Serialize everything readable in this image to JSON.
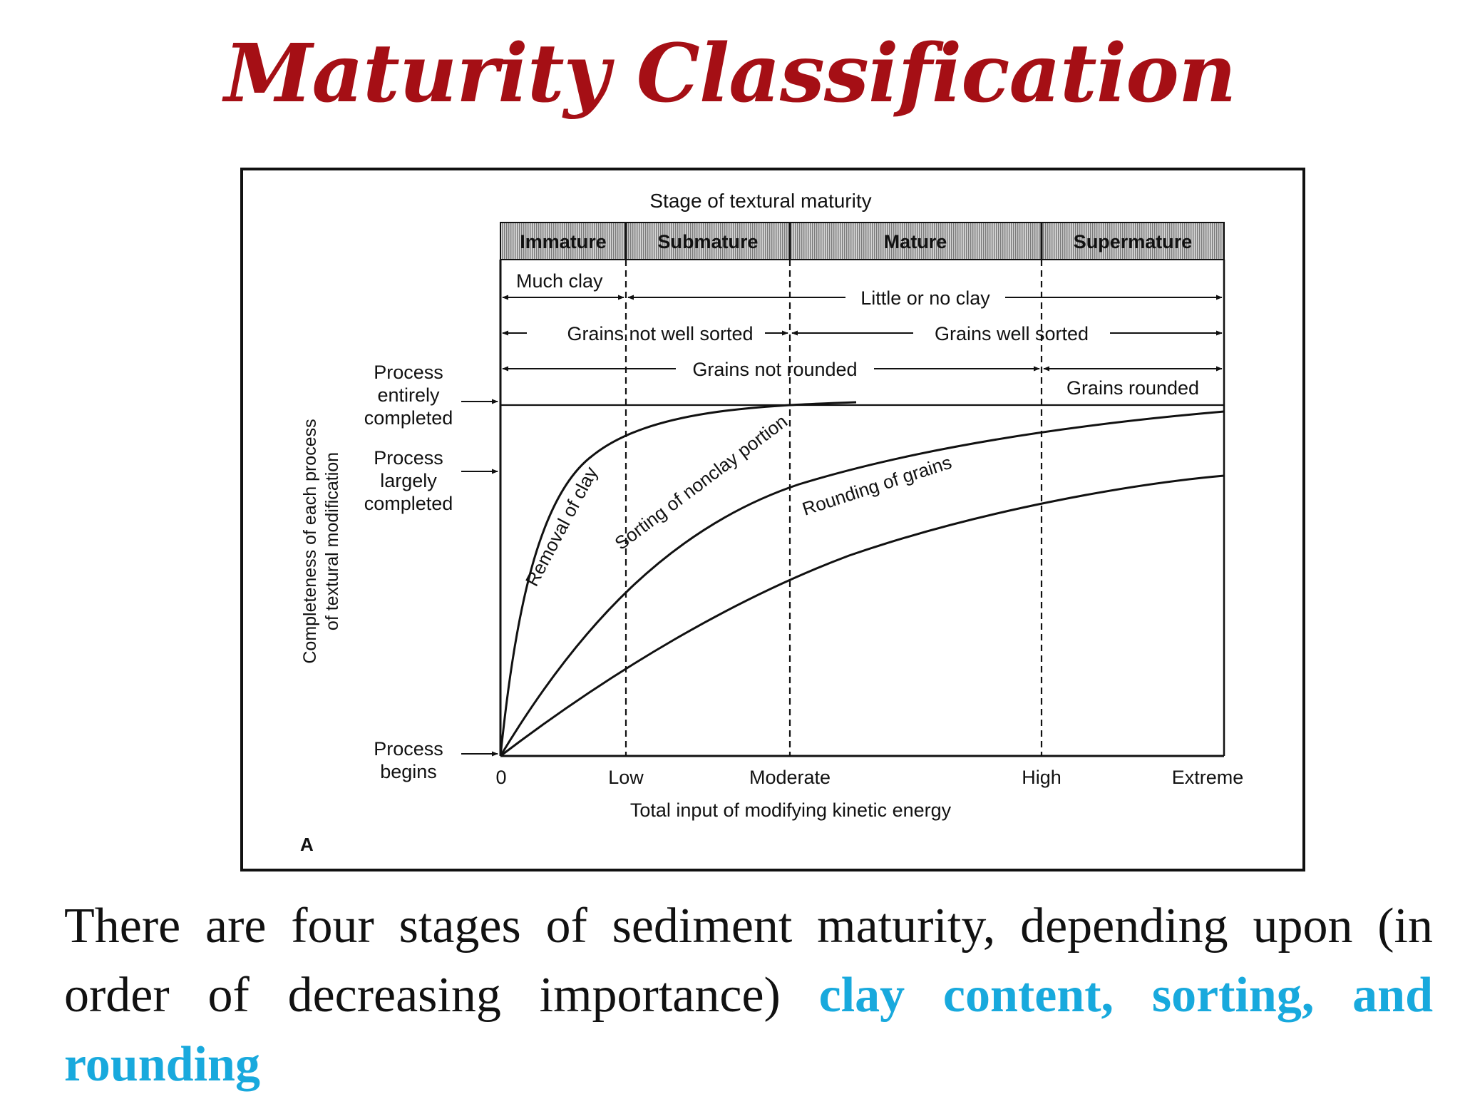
{
  "title": "Maturity Classification",
  "figure": {
    "top_label": "Stage of textural maturity",
    "stages": [
      "Immature",
      "Submature",
      "Mature",
      "Supermature"
    ],
    "ranges": {
      "much_clay": "Much clay",
      "little_clay": "Little or no clay",
      "not_sorted": "Grains not well sorted",
      "well_sorted": "Grains well sorted",
      "not_rounded": "Grains not rounded",
      "rounded": "Grains rounded"
    },
    "y_axis_label_line1": "Completeness of each process",
    "y_axis_label_line2": "of textural modification",
    "levels": {
      "entirely": [
        "Process",
        "entirely",
        "completed"
      ],
      "largely": [
        "Process",
        "largely",
        "completed"
      ],
      "begins": [
        "Process",
        "begins"
      ]
    },
    "x_ticks": [
      "0",
      "Low",
      "Moderate",
      "High",
      "Extreme"
    ],
    "x_axis_label": "Total input of modifying kinetic energy",
    "curves": {
      "clay": "Removal of clay",
      "sorting": "Sorting of nonclay portion",
      "rounding": "Rounding of grains"
    },
    "panel_label": "A",
    "colors": {
      "stage_band": "#bdbdbd",
      "ink": "#111111"
    }
  },
  "caption": {
    "text": "There are four stages of sediment maturity, depending upon (in order of decreasing importance) ",
    "highlight": "clay content, sorting, and rounding",
    "highlight_color": "#18a9dd"
  }
}
